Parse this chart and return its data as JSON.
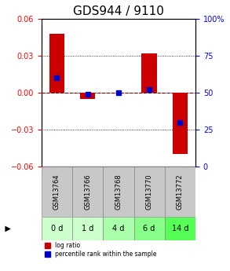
{
  "title": "GDS944 / 9110",
  "samples": [
    "GSM13764",
    "GSM13766",
    "GSM13768",
    "GSM13770",
    "GSM13772"
  ],
  "time_labels": [
    "0 d",
    "1 d",
    "4 d",
    "6 d",
    "14 d"
  ],
  "log_ratios": [
    0.048,
    -0.005,
    0.0,
    0.032,
    -0.05
  ],
  "percentile_ranks": [
    60,
    49,
    50,
    52,
    30
  ],
  "ylim_left": [
    -0.06,
    0.06
  ],
  "ylim_right": [
    0,
    100
  ],
  "yticks_left": [
    -0.06,
    -0.03,
    0,
    0.03,
    0.06
  ],
  "yticks_right": [
    0,
    25,
    50,
    75,
    100
  ],
  "bar_color": "#cc0000",
  "percentile_color": "#0000cc",
  "bar_width": 0.5,
  "grid_color": "#000000",
  "zero_line_color": "#cc0000",
  "bg_color": "#ffffff",
  "plot_bg": "#ffffff",
  "sample_bg": "#c8c8c8",
  "time_bg_colors": [
    "#ccffcc",
    "#ccffcc",
    "#aaffaa",
    "#88ff88",
    "#55ff55"
  ],
  "title_fontsize": 11,
  "tick_fontsize": 7,
  "label_fontsize": 7
}
